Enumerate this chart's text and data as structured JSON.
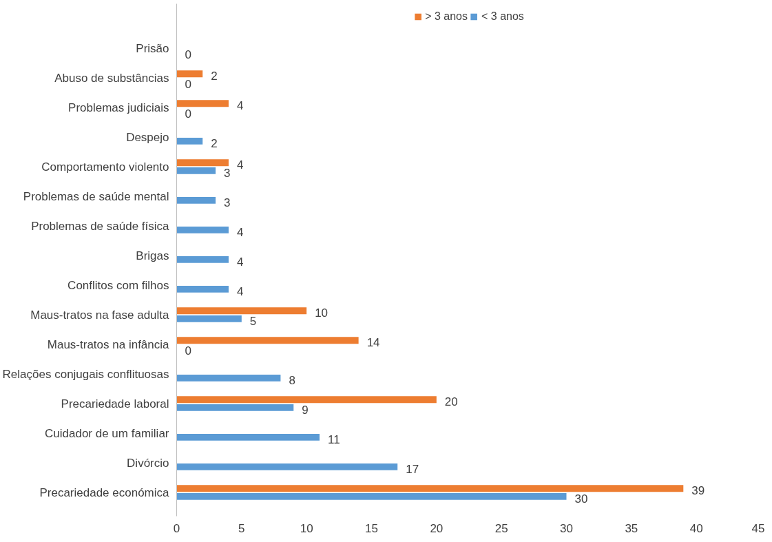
{
  "chart_data": {
    "type": "bar",
    "orientation": "horizontal",
    "categories": [
      "Prisão",
      "Abuso de substâncias",
      "Problemas judiciais",
      "Despejo",
      "Comportamento violento",
      "Problemas de saúde mental",
      "Problemas de saúde física",
      "Brigas",
      "Conflitos com filhos",
      "Maus-tratos na fase adulta",
      "Maus-tratos na infância",
      "Relações conjugais conflituosas",
      "Precariedade laboral",
      "Cuidador de um familiar",
      "Divórcio",
      "Precariedade económica"
    ],
    "series": [
      {
        "name": "> 3 anos",
        "color": "#ed7d31",
        "values": [
          null,
          2,
          4,
          null,
          4,
          null,
          null,
          null,
          null,
          10,
          14,
          null,
          20,
          null,
          null,
          39
        ]
      },
      {
        "name": "< 3 anos",
        "color": "#5b9bd5",
        "values": [
          0,
          0,
          0,
          2,
          3,
          3,
          4,
          4,
          4,
          5,
          0,
          8,
          9,
          11,
          17,
          30
        ]
      }
    ],
    "xlim": [
      0,
      45
    ],
    "xticks": [
      0,
      5,
      10,
      15,
      20,
      25,
      30,
      35,
      40,
      45
    ],
    "data_labels": true,
    "grid": false,
    "legend": "top"
  }
}
